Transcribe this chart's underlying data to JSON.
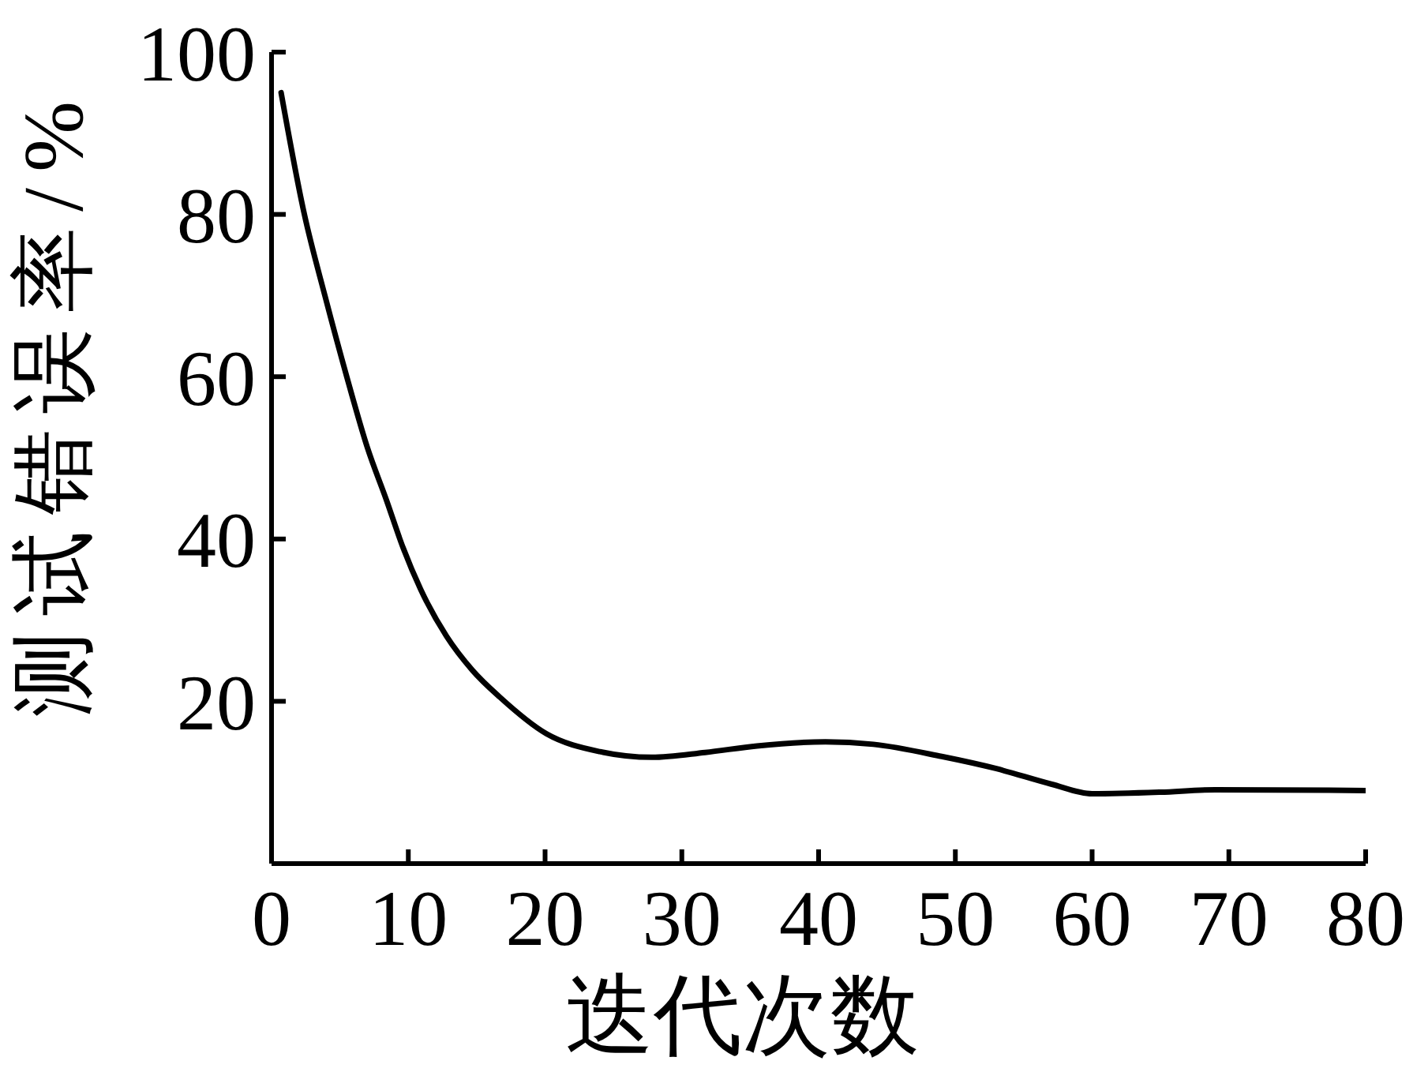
{
  "chart_data": {
    "type": "line",
    "xlabel": "迭代次数",
    "ylabel": "测试错误率/%",
    "x": [
      0.7,
      2.4,
      3.9,
      5.5,
      7,
      8.4,
      9.6,
      10.9,
      12.8,
      14.7,
      16.7,
      20.1,
      24,
      27.8,
      31.7,
      35.5,
      40.5,
      44,
      49,
      53,
      57,
      60,
      65,
      69,
      80
    ],
    "series": [
      {
        "color": "#000000",
        "values": [
          95,
          80,
          70,
          60,
          51.3,
          44.8,
          39,
          33.8,
          28,
          23.8,
          20.5,
          16,
          13.8,
          13.1,
          13.7,
          14.5,
          15,
          14.7,
          13.2,
          11.7,
          9.8,
          8.6,
          8.8,
          9.1,
          9
        ]
      }
    ],
    "xlim": [
      0,
      80
    ],
    "xticks": [
      0,
      10,
      20,
      30,
      40,
      50,
      60,
      70,
      80
    ],
    "ylim": [
      0,
      100
    ],
    "yticks": [
      20,
      40,
      60,
      80,
      100
    ]
  }
}
